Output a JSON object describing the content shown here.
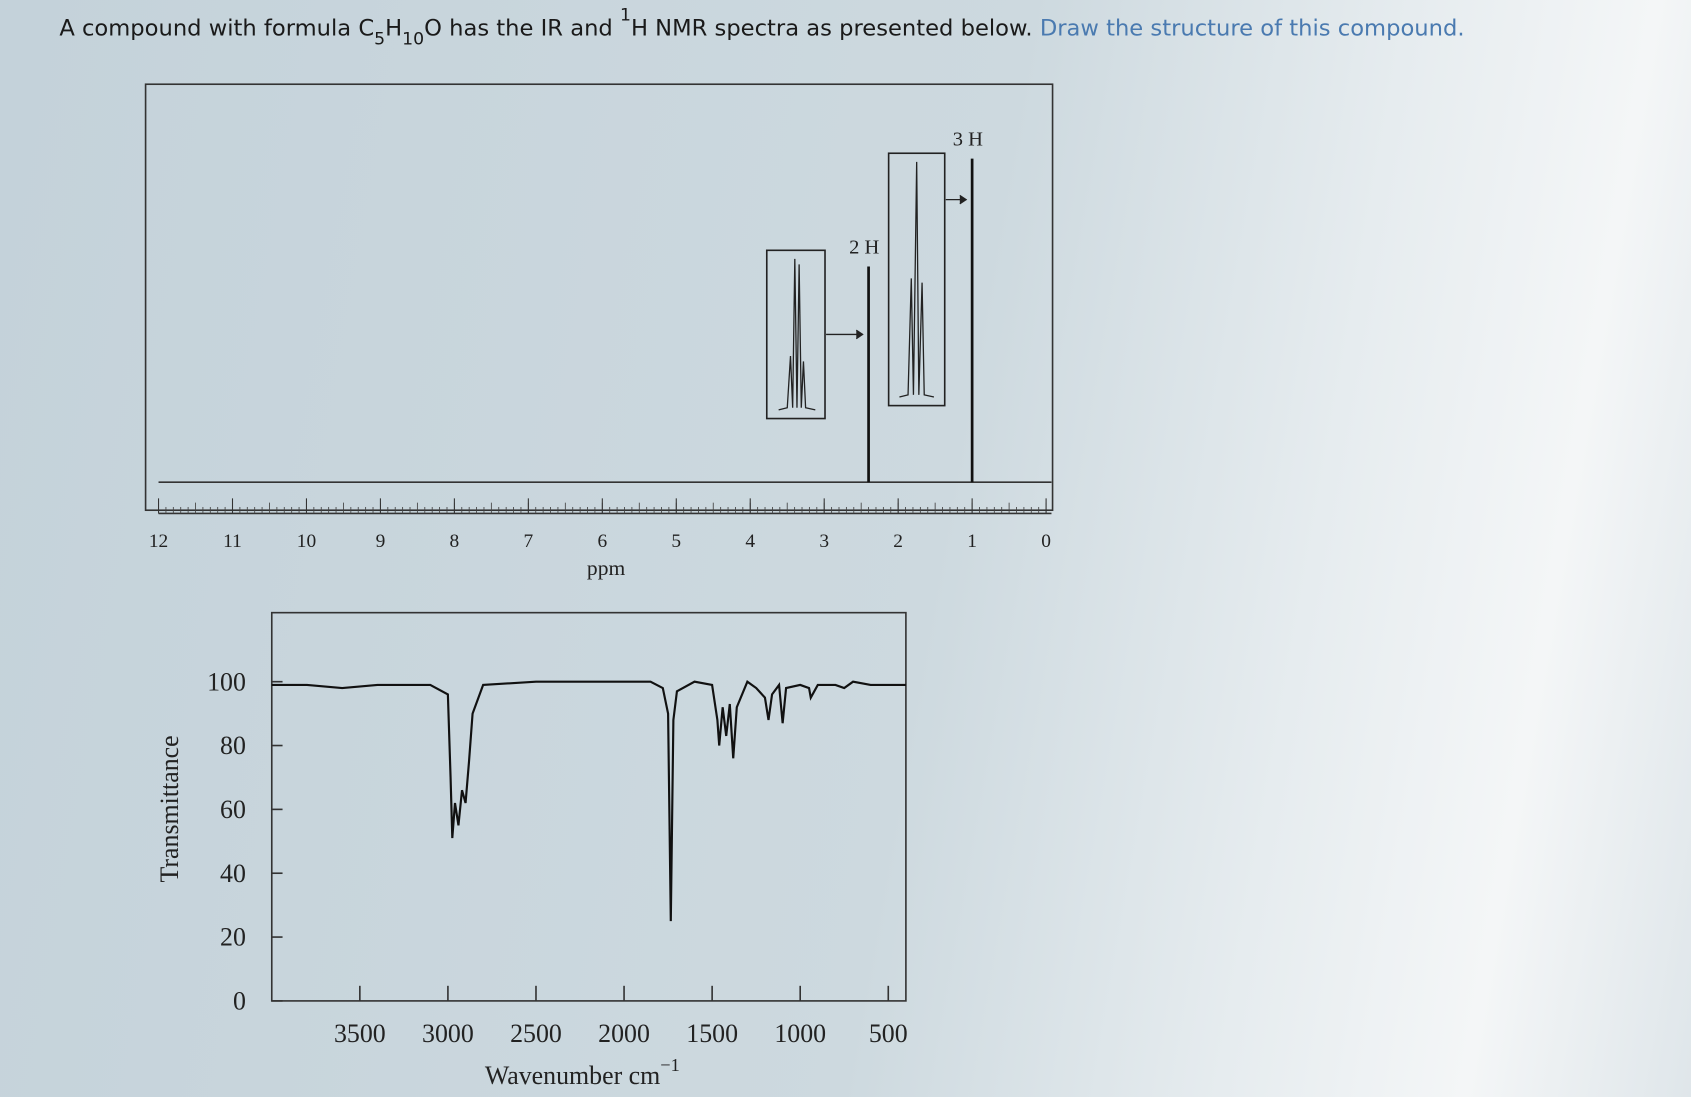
{
  "question": [
    "A compound with formula C",
    "5",
    "H",
    "10",
    "O has the IR and ",
    "1",
    "H NMR spectra as presented below.",
    " Draw the structure of this compound."
  ],
  "chart_data": [
    {
      "type": "spectrum",
      "xlabel": "ppm",
      "xlim": [
        12,
        0
      ],
      "xticks": [
        12,
        11,
        10,
        9,
        8,
        7,
        6,
        5,
        4,
        3,
        2,
        1,
        0
      ],
      "series": [
        {
          "x": [
            2.4,
            1.0
          ],
          "values": [
            2,
            3
          ],
          "value_labels": [
            "2 H",
            "3 H"
          ],
          "color": "#111111"
        }
      ]
    },
    {
      "type": "line",
      "xlabel": "Wavenumber cm",
      "xlabel_superscript": "−1",
      "ylabel": "Transmittance",
      "xlim": [
        4000,
        400
      ],
      "ylim": [
        0,
        120
      ],
      "xticks": [
        3500,
        3000,
        2500,
        2000,
        1500,
        1000,
        500
      ],
      "yticks": [
        0,
        20,
        40,
        60,
        80,
        100
      ],
      "series": [
        {
          "color": "#111111",
          "x": [
            4000,
            3800,
            3600,
            3400,
            3100,
            3000,
            2985,
            2975,
            2960,
            2940,
            2920,
            2900,
            2880,
            2860,
            2800,
            2500,
            2200,
            2000,
            1850,
            1780,
            1750,
            1735,
            1720,
            1700,
            1600,
            1500,
            1470,
            1460,
            1440,
            1420,
            1400,
            1380,
            1360,
            1300,
            1250,
            1200,
            1180,
            1160,
            1120,
            1100,
            1080,
            1000,
            950,
            940,
            900,
            800,
            750,
            700,
            600,
            400
          ],
          "values": [
            99,
            99,
            98,
            99,
            99,
            96,
            70,
            51,
            62,
            55,
            66,
            62,
            75,
            90,
            99,
            100,
            100,
            100,
            100,
            98,
            90,
            25,
            88,
            97,
            100,
            99,
            88,
            80,
            92,
            83,
            93,
            76,
            92,
            100,
            98,
            95,
            88,
            96,
            99,
            87,
            98,
            99,
            98,
            95,
            99,
            99,
            98,
            100,
            99,
            99
          ]
        }
      ]
    }
  ]
}
